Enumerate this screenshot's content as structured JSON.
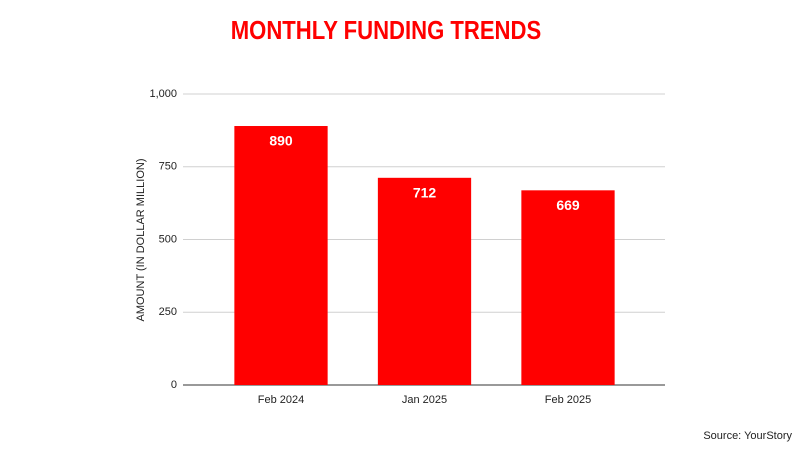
{
  "chart_data": {
    "type": "bar",
    "title": "MONTHLY FUNDING TRENDS",
    "y_label": "AMOUNT (IN DOLLAR MILLION)",
    "categories": [
      "Feb 2024",
      "Jan 2025",
      "Feb 2025"
    ],
    "values": [
      890,
      712,
      669
    ],
    "color": "#ff0000",
    "ylim": [
      0,
      1000
    ],
    "yticks": [
      0,
      250,
      500,
      750,
      {
        "value": 1000,
        "label": "1,000"
      }
    ],
    "grid": true,
    "source": "Source: YourStory"
  }
}
